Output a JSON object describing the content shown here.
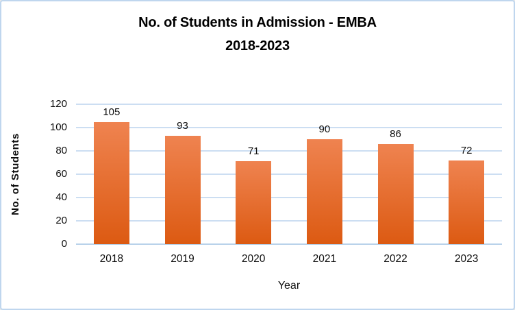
{
  "chart_data": {
    "type": "bar",
    "title": "No. of Students in Admission - EMBA",
    "subtitle": "2018-2023",
    "categories": [
      "2018",
      "2019",
      "2020",
      "2021",
      "2022",
      "2023"
    ],
    "values": [
      105,
      93,
      71,
      90,
      86,
      72
    ],
    "data_labels": [
      "105",
      "93",
      "71",
      "90",
      "86",
      "72"
    ],
    "xlabel": "Year",
    "ylabel": "No. of Students",
    "ylim": [
      0,
      120
    ],
    "y_ticks": [
      0,
      20,
      40,
      60,
      80,
      100,
      120
    ],
    "grid": "horizontal",
    "legend": "none",
    "colors": {
      "bar_gradient_top": "#EF8350",
      "bar_gradient_bottom": "#DC5A12",
      "gridline": "#CCDEF2",
      "axis_line": "#B9D2EA",
      "chart_border": "#BFD6EE",
      "text": "#0d0d0d",
      "background": "#ffffff"
    }
  }
}
